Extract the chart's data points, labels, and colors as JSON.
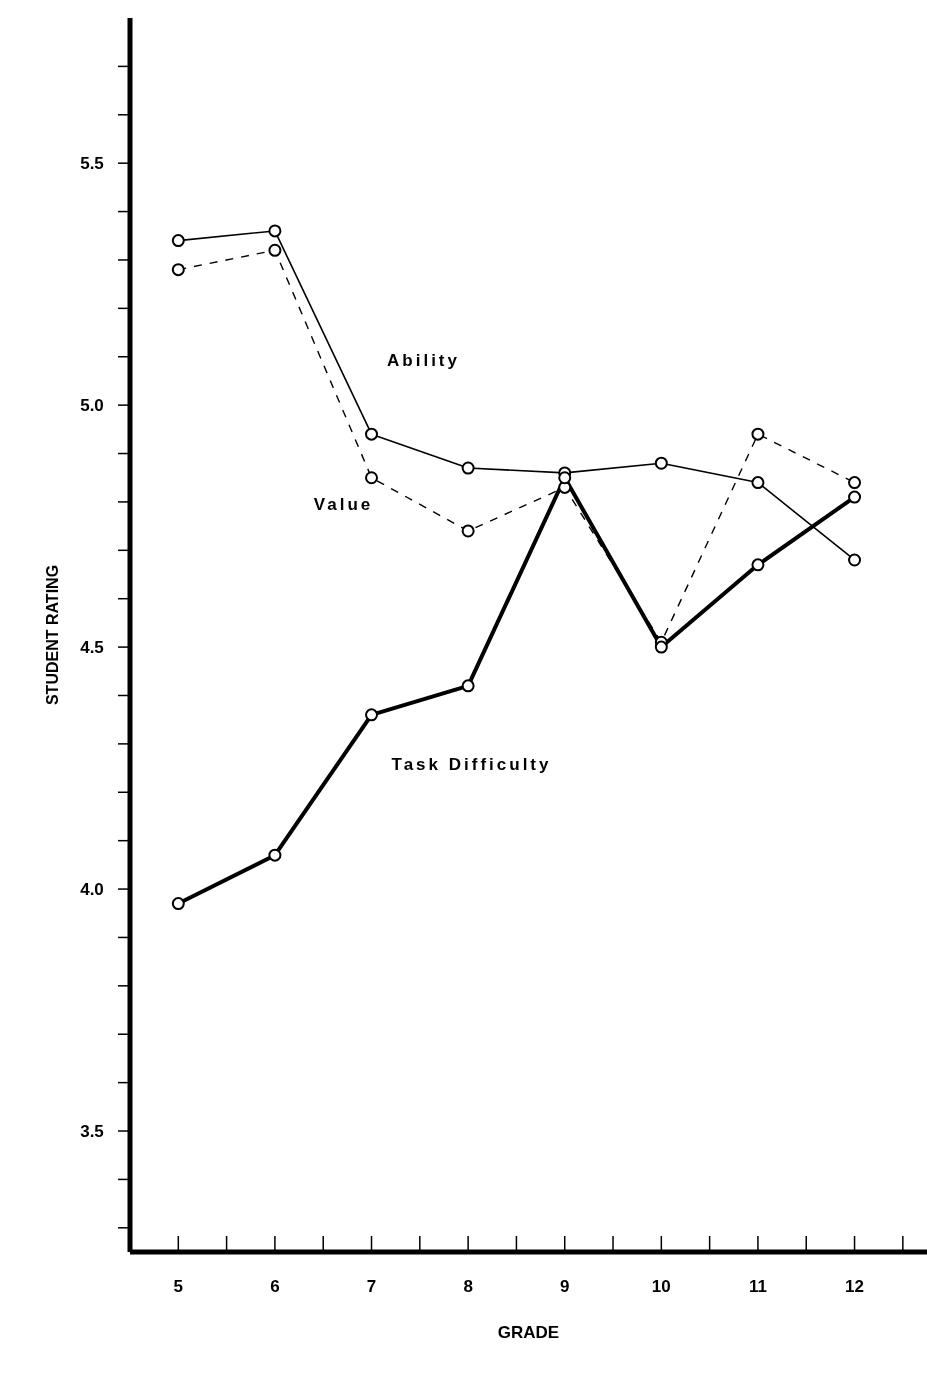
{
  "chart_data": {
    "type": "line",
    "xlabel": "GRADE",
    "ylabel": "STUDENT RATING",
    "x": [
      5,
      6,
      7,
      8,
      9,
      10,
      11,
      12
    ],
    "series": [
      {
        "name": "Ability",
        "color": "#000000",
        "line_style": "solid",
        "values": [
          5.34,
          5.36,
          4.94,
          4.87,
          4.86,
          4.88,
          4.84,
          4.68
        ]
      },
      {
        "name": "Value",
        "color": "#000000",
        "line_style": "dashed",
        "values": [
          5.28,
          5.32,
          4.85,
          4.74,
          4.83,
          4.51,
          4.94,
          4.84
        ]
      },
      {
        "name": "Task Difficulty",
        "color": "#000000",
        "line_style": "solid",
        "values": [
          3.97,
          4.07,
          4.36,
          4.42,
          4.85,
          4.5,
          4.67,
          4.81
        ]
      }
    ],
    "marker": "circle",
    "xlim": [
      4.5,
      12.75
    ],
    "xticks": [
      5,
      {
        "value": 5.5,
        "label": null
      },
      6,
      {
        "value": 6.5,
        "label": null
      },
      7,
      {
        "value": 7.5,
        "label": null
      },
      8,
      {
        "value": 8.5,
        "label": null
      },
      9,
      {
        "value": 9.5,
        "label": null
      },
      10,
      {
        "value": 10.5,
        "label": null
      },
      11,
      {
        "value": 11.5,
        "label": null
      },
      12,
      {
        "value": 12.5,
        "label": null
      }
    ],
    "ylim": [
      3.25,
      5.8
    ],
    "yticks": [
      {
        "value": 3.3,
        "label": null
      },
      {
        "value": 3.4,
        "label": null
      },
      {
        "value": 3.5,
        "label": "3.5"
      },
      {
        "value": 3.6,
        "label": null
      },
      {
        "value": 3.7,
        "label": null
      },
      {
        "value": 3.8,
        "label": null
      },
      {
        "value": 3.9,
        "label": null
      },
      {
        "value": 4.0,
        "label": "4.0"
      },
      {
        "value": 4.1,
        "label": null
      },
      {
        "value": 4.2,
        "label": null
      },
      {
        "value": 4.3,
        "label": null
      },
      {
        "value": 4.4,
        "label": null
      },
      {
        "value": 4.5,
        "label": "4.5"
      },
      {
        "value": 4.6,
        "label": null
      },
      {
        "value": 4.7,
        "label": null
      },
      {
        "value": 4.8,
        "label": null
      },
      {
        "value": 4.9,
        "label": null
      },
      {
        "value": 5.0,
        "label": "5.0"
      },
      {
        "value": 5.1,
        "label": null
      },
      {
        "value": 5.2,
        "label": null
      },
      {
        "value": 5.3,
        "label": null
      },
      {
        "value": 5.4,
        "label": null
      },
      {
        "value": 5.5,
        "label": "5.5"
      },
      {
        "value": 5.6,
        "label": null
      },
      {
        "value": 5.7,
        "label": null
      }
    ],
    "grid": false,
    "legend": false
  }
}
